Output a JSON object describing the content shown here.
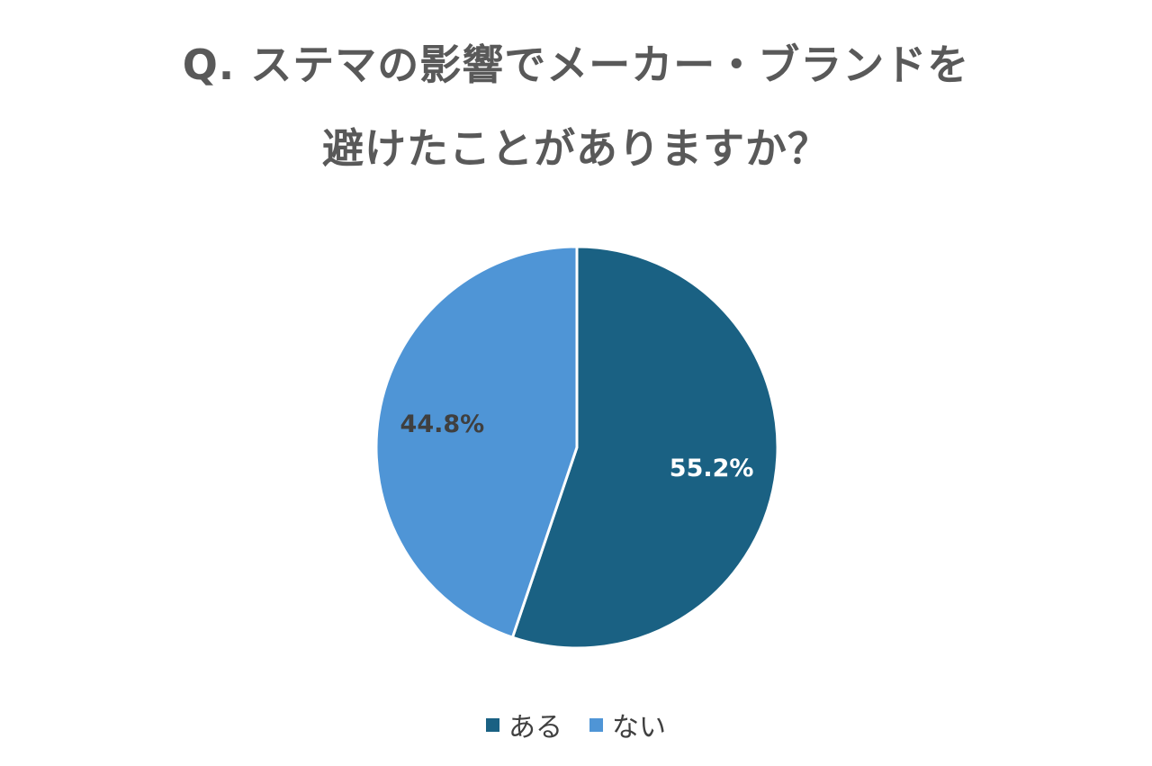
{
  "chart_data": {
    "type": "pie",
    "title": [
      "Q. ステマの影響でメーカー・ブランドを",
      "避けたことがありますか？"
    ],
    "categories": [
      "ある",
      "ない"
    ],
    "values": [
      55.2,
      44.8
    ],
    "data_labels": [
      "55.2%",
      "44.8%"
    ],
    "colors": [
      "#1a6183",
      "#4f95d6"
    ],
    "data_label_colors": [
      "#ffffff",
      "#3f3f3f"
    ],
    "legend": "bottom"
  }
}
